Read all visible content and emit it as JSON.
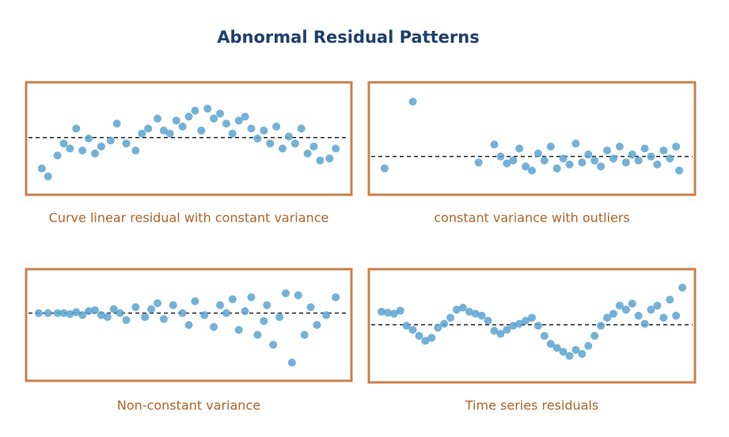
{
  "title": "Abnormal Residual Patterns",
  "chart_data": [
    {
      "type": "scatter",
      "title": "Curve linear residual with constant variance",
      "color": "#5ba3d0",
      "xlim": [
        0,
        100
      ],
      "ylim": [
        0,
        100
      ],
      "reference_line": 51,
      "x": [
        3,
        5,
        8,
        10,
        12,
        14,
        16,
        18,
        20,
        22,
        25,
        27,
        30,
        33,
        35,
        37,
        40,
        42,
        44,
        46,
        48,
        50,
        52,
        54,
        56,
        58,
        60,
        62,
        64,
        66,
        68,
        70,
        72,
        74,
        76,
        78,
        80,
        82,
        84,
        86,
        88,
        90,
        92,
        95,
        97
      ],
      "y": [
        20,
        12,
        33,
        45,
        40,
        60,
        38,
        50,
        35,
        42,
        48,
        65,
        45,
        38,
        55,
        60,
        70,
        58,
        55,
        68,
        62,
        72,
        78,
        58,
        80,
        70,
        75,
        65,
        55,
        68,
        72,
        60,
        50,
        58,
        45,
        62,
        40,
        52,
        45,
        60,
        35,
        42,
        28,
        30,
        40
      ]
    },
    {
      "type": "scatter",
      "title": "constant variance with outliers",
      "color": "#5ba3d0",
      "xlim": [
        0,
        100
      ],
      "ylim": [
        0,
        100
      ],
      "reference_line": 32,
      "x": [
        3,
        12,
        33,
        38,
        40,
        42,
        44,
        46,
        48,
        50,
        52,
        54,
        56,
        58,
        60,
        62,
        64,
        66,
        68,
        70,
        72,
        74,
        76,
        78,
        80,
        82,
        84,
        86,
        88,
        90,
        92,
        94,
        96,
        97
      ],
      "y": [
        20,
        87,
        26,
        44,
        32,
        25,
        28,
        40,
        22,
        18,
        35,
        28,
        42,
        20,
        30,
        24,
        45,
        26,
        34,
        28,
        22,
        38,
        30,
        42,
        26,
        34,
        28,
        40,
        32,
        24,
        38,
        30,
        42,
        18
      ]
    },
    {
      "type": "scatter",
      "title": "Non-constant variance",
      "color": "#5ba3d0",
      "xlim": [
        0,
        100
      ],
      "ylim": [
        0,
        100
      ],
      "reference_line": 62,
      "x": [
        2,
        5,
        8,
        10,
        12,
        14,
        16,
        18,
        20,
        22,
        24,
        26,
        28,
        30,
        33,
        36,
        38,
        40,
        42,
        45,
        48,
        50,
        52,
        55,
        58,
        60,
        62,
        64,
        66,
        68,
        70,
        72,
        74,
        75,
        77,
        79,
        81,
        83,
        85,
        87,
        89,
        91,
        94,
        97
      ],
      "y": [
        62,
        62,
        62,
        62,
        61,
        63,
        60,
        64,
        65,
        60,
        58,
        66,
        62,
        55,
        68,
        58,
        66,
        72,
        56,
        70,
        62,
        50,
        74,
        60,
        48,
        70,
        62,
        76,
        45,
        64,
        78,
        40,
        54,
        70,
        30,
        58,
        82,
        12,
        80,
        40,
        68,
        50,
        60,
        78
      ]
    },
    {
      "type": "scatter",
      "title": "Time series residuals",
      "color": "#5ba3d0",
      "xlim": [
        0,
        100
      ],
      "ylim": [
        0,
        100
      ],
      "reference_line": 51,
      "x": [
        2,
        4,
        6,
        8,
        10,
        12,
        14,
        16,
        18,
        20,
        22,
        24,
        26,
        28,
        30,
        32,
        34,
        36,
        38,
        40,
        42,
        44,
        46,
        48,
        50,
        52,
        54,
        56,
        58,
        60,
        62,
        64,
        66,
        68,
        70,
        72,
        74,
        76,
        78,
        80,
        82,
        84,
        86,
        88,
        90,
        92,
        94,
        96,
        98
      ],
      "y": [
        64,
        63,
        62,
        65,
        50,
        46,
        40,
        35,
        38,
        48,
        52,
        58,
        66,
        68,
        64,
        62,
        60,
        55,
        45,
        42,
        46,
        50,
        52,
        55,
        58,
        50,
        40,
        32,
        28,
        24,
        20,
        26,
        22,
        30,
        40,
        50,
        58,
        62,
        70,
        66,
        72,
        60,
        52,
        66,
        70,
        58,
        76,
        60,
        88
      ]
    }
  ]
}
